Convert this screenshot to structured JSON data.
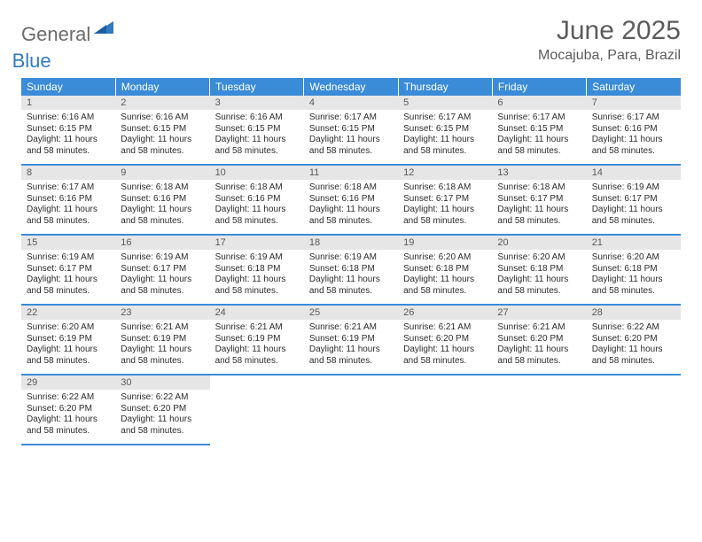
{
  "brand": {
    "part1": "General",
    "part2": "Blue"
  },
  "title": "June 2025",
  "location": "Mocajuba, Para, Brazil",
  "colors": {
    "header_bg": "#3a8bd8",
    "header_text": "#ffffff",
    "daynum_bg": "#e6e6e6",
    "daynum_text": "#595959",
    "border": "#3a8bd8",
    "title_text": "#5c5c5c",
    "logo_gray": "#6b6b6b",
    "logo_blue": "#2f7bc4"
  },
  "weekdays": [
    "Sunday",
    "Monday",
    "Tuesday",
    "Wednesday",
    "Thursday",
    "Friday",
    "Saturday"
  ],
  "weeks": [
    [
      {
        "n": "1",
        "sr": "6:16 AM",
        "ss": "6:15 PM",
        "dl": "11 hours and 58 minutes."
      },
      {
        "n": "2",
        "sr": "6:16 AM",
        "ss": "6:15 PM",
        "dl": "11 hours and 58 minutes."
      },
      {
        "n": "3",
        "sr": "6:16 AM",
        "ss": "6:15 PM",
        "dl": "11 hours and 58 minutes."
      },
      {
        "n": "4",
        "sr": "6:17 AM",
        "ss": "6:15 PM",
        "dl": "11 hours and 58 minutes."
      },
      {
        "n": "5",
        "sr": "6:17 AM",
        "ss": "6:15 PM",
        "dl": "11 hours and 58 minutes."
      },
      {
        "n": "6",
        "sr": "6:17 AM",
        "ss": "6:15 PM",
        "dl": "11 hours and 58 minutes."
      },
      {
        "n": "7",
        "sr": "6:17 AM",
        "ss": "6:16 PM",
        "dl": "11 hours and 58 minutes."
      }
    ],
    [
      {
        "n": "8",
        "sr": "6:17 AM",
        "ss": "6:16 PM",
        "dl": "11 hours and 58 minutes."
      },
      {
        "n": "9",
        "sr": "6:18 AM",
        "ss": "6:16 PM",
        "dl": "11 hours and 58 minutes."
      },
      {
        "n": "10",
        "sr": "6:18 AM",
        "ss": "6:16 PM",
        "dl": "11 hours and 58 minutes."
      },
      {
        "n": "11",
        "sr": "6:18 AM",
        "ss": "6:16 PM",
        "dl": "11 hours and 58 minutes."
      },
      {
        "n": "12",
        "sr": "6:18 AM",
        "ss": "6:17 PM",
        "dl": "11 hours and 58 minutes."
      },
      {
        "n": "13",
        "sr": "6:18 AM",
        "ss": "6:17 PM",
        "dl": "11 hours and 58 minutes."
      },
      {
        "n": "14",
        "sr": "6:19 AM",
        "ss": "6:17 PM",
        "dl": "11 hours and 58 minutes."
      }
    ],
    [
      {
        "n": "15",
        "sr": "6:19 AM",
        "ss": "6:17 PM",
        "dl": "11 hours and 58 minutes."
      },
      {
        "n": "16",
        "sr": "6:19 AM",
        "ss": "6:17 PM",
        "dl": "11 hours and 58 minutes."
      },
      {
        "n": "17",
        "sr": "6:19 AM",
        "ss": "6:18 PM",
        "dl": "11 hours and 58 minutes."
      },
      {
        "n": "18",
        "sr": "6:19 AM",
        "ss": "6:18 PM",
        "dl": "11 hours and 58 minutes."
      },
      {
        "n": "19",
        "sr": "6:20 AM",
        "ss": "6:18 PM",
        "dl": "11 hours and 58 minutes."
      },
      {
        "n": "20",
        "sr": "6:20 AM",
        "ss": "6:18 PM",
        "dl": "11 hours and 58 minutes."
      },
      {
        "n": "21",
        "sr": "6:20 AM",
        "ss": "6:18 PM",
        "dl": "11 hours and 58 minutes."
      }
    ],
    [
      {
        "n": "22",
        "sr": "6:20 AM",
        "ss": "6:19 PM",
        "dl": "11 hours and 58 minutes."
      },
      {
        "n": "23",
        "sr": "6:21 AM",
        "ss": "6:19 PM",
        "dl": "11 hours and 58 minutes."
      },
      {
        "n": "24",
        "sr": "6:21 AM",
        "ss": "6:19 PM",
        "dl": "11 hours and 58 minutes."
      },
      {
        "n": "25",
        "sr": "6:21 AM",
        "ss": "6:19 PM",
        "dl": "11 hours and 58 minutes."
      },
      {
        "n": "26",
        "sr": "6:21 AM",
        "ss": "6:20 PM",
        "dl": "11 hours and 58 minutes."
      },
      {
        "n": "27",
        "sr": "6:21 AM",
        "ss": "6:20 PM",
        "dl": "11 hours and 58 minutes."
      },
      {
        "n": "28",
        "sr": "6:22 AM",
        "ss": "6:20 PM",
        "dl": "11 hours and 58 minutes."
      }
    ],
    [
      {
        "n": "29",
        "sr": "6:22 AM",
        "ss": "6:20 PM",
        "dl": "11 hours and 58 minutes."
      },
      {
        "n": "30",
        "sr": "6:22 AM",
        "ss": "6:20 PM",
        "dl": "11 hours and 58 minutes."
      },
      null,
      null,
      null,
      null,
      null
    ]
  ],
  "labels": {
    "sunrise": "Sunrise:",
    "sunset": "Sunset:",
    "daylight": "Daylight:"
  }
}
